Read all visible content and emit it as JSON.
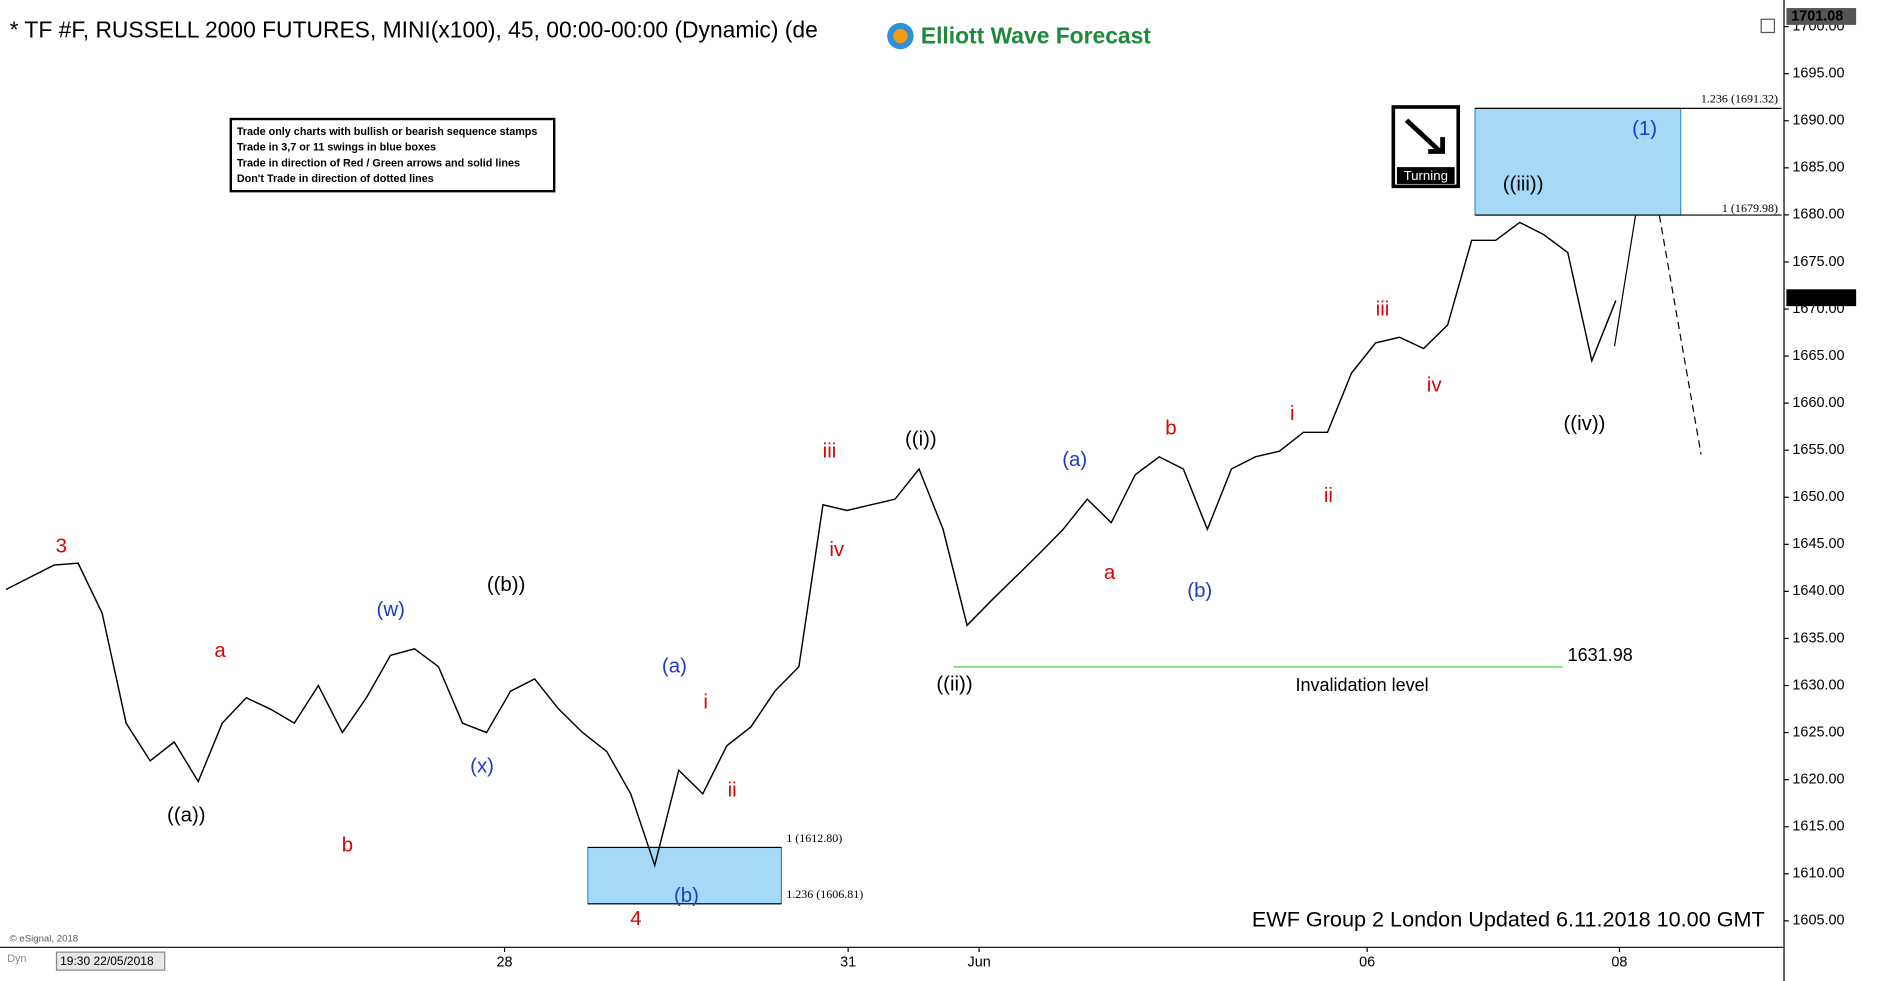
{
  "chart_data": {
    "type": "line",
    "title": "* TF #F, RUSSELL 2000 FUTURES, MINI(x100), 45, 00:00-00:00 (Dynamic) (de",
    "logo": "Elliott Wave Forecast",
    "notes": [
      "Trade only charts with bullish or bearish sequence stamps",
      "Trade in 3,7 or 11 swings in blue boxes",
      "Trade in direction of Red / Green arrows and solid lines",
      "Don't Trade in direction of dotted lines"
    ],
    "stamp": "Turning",
    "footer": "EWF Group 2 London Updated 6.11.2018 10.00 GMT",
    "copyright": "© eSignal, 2018",
    "cursor_time": "19:30 22/05/2018",
    "dyn": "Dyn",
    "series": [
      {
        "name": "TF #F",
        "color": "#000000",
        "values": [
          1640.2,
          1641.5,
          1642.8,
          1643,
          1637.7,
          1626,
          1622,
          1624,
          1619.8,
          1626,
          1628.7,
          1627.5,
          1626,
          1630,
          1625,
          1628.7,
          1633.2,
          1633.9,
          1632,
          1626,
          1625,
          1629.4,
          1630.7,
          1627.5,
          1625,
          1623,
          1618.5,
          1610.9,
          1621,
          1618.5,
          1623.6,
          1625.6,
          1629.4,
          1632,
          1649.2,
          1648.6,
          1649.2,
          1649.8,
          1653,
          1646.6,
          1636.4,
          1639,
          1641.5,
          1644,
          1646.6,
          1649.8,
          1647.3,
          1652.4,
          1654.3,
          1653,
          1646.6,
          1653,
          1654.3,
          1654.9,
          1656.9,
          1656.9,
          1663.2,
          1666.4,
          1667,
          1665.8,
          1668.3,
          1677.3,
          1677.3,
          1679.2,
          1677.9,
          1676,
          1664.5,
          1670.9
        ]
      }
    ],
    "xlim": [
      -0.25,
      74
    ],
    "xticks": [
      {
        "value": 20.75,
        "label": "28"
      },
      {
        "value": 35.05,
        "label": "31"
      },
      {
        "value": 40.5,
        "label": "Jun"
      },
      {
        "value": 56.65,
        "label": "06"
      },
      {
        "value": 67.15,
        "label": "08"
      }
    ],
    "ylim": [
      1602.2,
      1701.5
    ],
    "yticks": [
      {
        "value": 1605,
        "label": "1605.00"
      },
      {
        "value": 1610,
        "label": "1610.00"
      },
      {
        "value": 1615,
        "label": "1615.00"
      },
      {
        "value": 1620,
        "label": "1620.00"
      },
      {
        "value": 1625,
        "label": "1625.00"
      },
      {
        "value": 1630,
        "label": "1630.00"
      },
      {
        "value": 1635,
        "label": "1635.00"
      },
      {
        "value": 1640,
        "label": "1640.00"
      },
      {
        "value": 1645,
        "label": "1645.00"
      },
      {
        "value": 1650,
        "label": "1650.00"
      },
      {
        "value": 1655,
        "label": "1655.00"
      },
      {
        "value": 1660,
        "label": "1660.00"
      },
      {
        "value": 1665,
        "label": "1665.00"
      },
      {
        "value": 1670,
        "label": "1670.00"
      },
      {
        "value": 1675,
        "label": "1675.00"
      },
      {
        "value": 1680,
        "label": "1680.00"
      },
      {
        "value": 1685,
        "label": "1685.00"
      },
      {
        "value": 1690,
        "label": "1690.00"
      },
      {
        "value": 1695,
        "label": "1695.00"
      },
      {
        "value": 1700,
        "label": "1700.00"
      }
    ],
    "last_price": {
      "value": 1671.2,
      "label": "1671.20"
    },
    "top_price": {
      "value": 1701.08,
      "label": "1701.08"
    },
    "upper_box": {
      "color": "#a6d8f7",
      "top": {
        "value": 1691.32,
        "label": "1.236 (1691.32)"
      },
      "bottom": {
        "value": 1679.98,
        "label": "1 (1679.98)"
      }
    },
    "lower_box": {
      "color": "#a6d8f7",
      "top": {
        "value": 1612.8,
        "label": "1 (1612.80)"
      },
      "bottom": {
        "value": 1606.81,
        "label": "1.236 (1606.81)"
      }
    },
    "invalidation": {
      "value": 1631.98,
      "label": "Invalidation level",
      "color": "#7ddc7d"
    },
    "wave_labels": [
      {
        "text": "3",
        "color": "#e00000"
      },
      {
        "text": "((a))",
        "color": "#000000"
      },
      {
        "text": "a",
        "color": "#e00000"
      },
      {
        "text": "b",
        "color": "#e00000"
      },
      {
        "text": "(w)",
        "color": "#1a3cc8"
      },
      {
        "text": "(x)",
        "color": "#1a3cc8"
      },
      {
        "text": "((b))",
        "color": "#000000"
      },
      {
        "text": "(a)",
        "color": "#1a3cc8"
      },
      {
        "text": "4",
        "color": "#e00000"
      },
      {
        "text": "(b)",
        "color": "#1a3cc8"
      },
      {
        "text": "i",
        "color": "#e00000"
      },
      {
        "text": "ii",
        "color": "#e00000"
      },
      {
        "text": "iii",
        "color": "#e00000"
      },
      {
        "text": "iv",
        "color": "#e00000"
      },
      {
        "text": "((i))",
        "color": "#000000"
      },
      {
        "text": "((ii))",
        "color": "#000000"
      },
      {
        "text": "(a)",
        "color": "#1a3cc8"
      },
      {
        "text": "a",
        "color": "#e00000"
      },
      {
        "text": "b",
        "color": "#e00000"
      },
      {
        "text": "(b)",
        "color": "#1a3cc8"
      },
      {
        "text": "i",
        "color": "#e00000"
      },
      {
        "text": "ii",
        "color": "#e00000"
      },
      {
        "text": "iii",
        "color": "#e00000"
      },
      {
        "text": "iv",
        "color": "#e00000"
      },
      {
        "text": "((iii))",
        "color": "#000000"
      },
      {
        "text": "((iv))",
        "color": "#000000"
      },
      {
        "text": "(1)",
        "color": "#1a3cc8"
      }
    ]
  }
}
